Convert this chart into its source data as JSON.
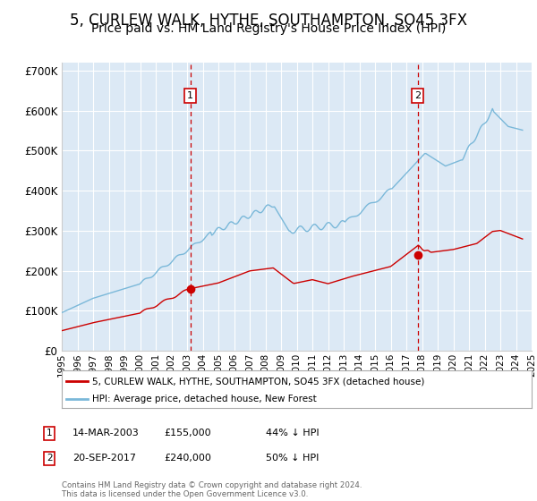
{
  "title": "5, CURLEW WALK, HYTHE, SOUTHAMPTON, SO45 3FX",
  "subtitle": "Price paid vs. HM Land Registry's House Price Index (HPI)",
  "title_fontsize": 12,
  "subtitle_fontsize": 10,
  "bg_color": "#dce9f5",
  "hpi_color": "#7ab8d9",
  "price_color": "#cc0000",
  "marker_color": "#cc0000",
  "vline_color": "#cc0000",
  "marker_box_color": "#cc0000",
  "ylim": [
    0,
    720000
  ],
  "yticks": [
    0,
    100000,
    200000,
    300000,
    400000,
    500000,
    600000,
    700000
  ],
  "ytick_labels": [
    "£0",
    "£100K",
    "£200K",
    "£300K",
    "£400K",
    "£500K",
    "£600K",
    "£700K"
  ],
  "legend_label_price": "5, CURLEW WALK, HYTHE, SOUTHAMPTON, SO45 3FX (detached house)",
  "legend_label_hpi": "HPI: Average price, detached house, New Forest",
  "transaction1_date": "14-MAR-2003",
  "transaction1_price": 155000,
  "transaction1_pct": "44% ↓ HPI",
  "transaction2_date": "20-SEP-2017",
  "transaction2_price": 240000,
  "transaction2_pct": "50% ↓ HPI",
  "footer": "Contains HM Land Registry data © Crown copyright and database right 2024.\nThis data is licensed under the Open Government Licence v3.0.",
  "transaction1_x": 2003.21,
  "transaction2_x": 2017.72,
  "xtick_years": [
    1995,
    1996,
    1997,
    1998,
    1999,
    2000,
    2001,
    2002,
    2003,
    2004,
    2005,
    2006,
    2007,
    2008,
    2009,
    2010,
    2011,
    2012,
    2013,
    2014,
    2015,
    2016,
    2017,
    2018,
    2019,
    2020,
    2021,
    2022,
    2023,
    2024,
    2025
  ]
}
